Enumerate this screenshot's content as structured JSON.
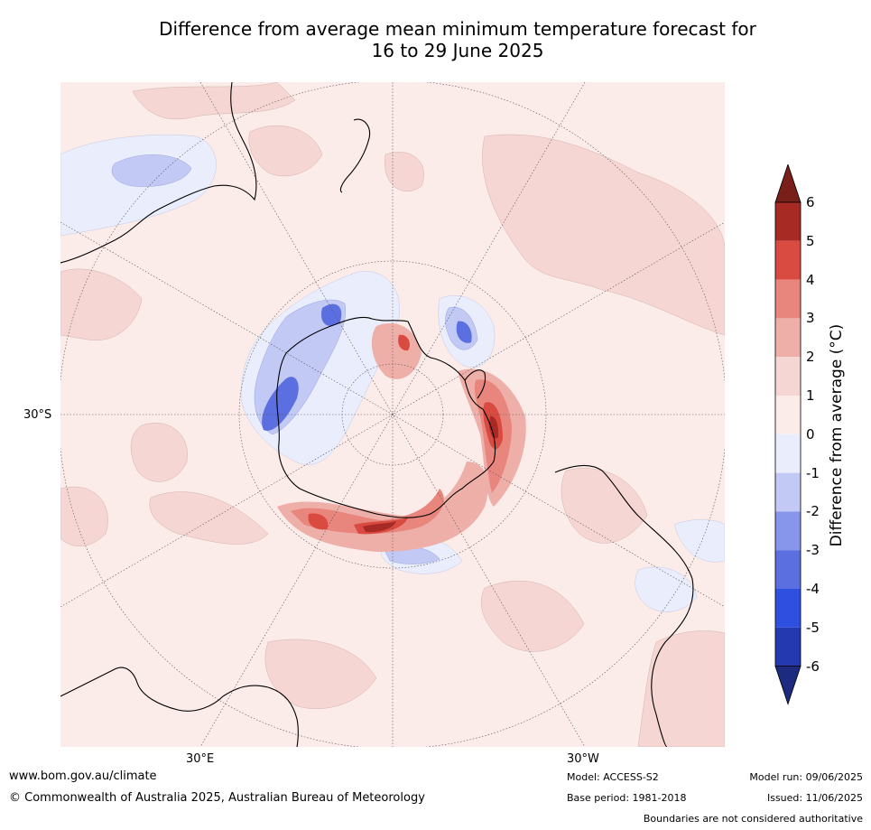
{
  "title_line1": "Difference from average mean minimum temperature forecast for",
  "title_line2": "16 to 29 June 2025",
  "map": {
    "projection": "south-polar-stereographic",
    "lat_label": "30°S",
    "lon_labels": [
      "30°E",
      "30°W"
    ],
    "ocean_fill": "#fbebe9",
    "coastline_color": "#000000"
  },
  "colorbar": {
    "label": "Difference from average (°C)",
    "ticks": [
      "6",
      "5",
      "4",
      "3",
      "2",
      "1",
      "0",
      "-1",
      "-2",
      "-3",
      "-4",
      "-5",
      "-6"
    ],
    "levels": [
      {
        "range": ">6",
        "color": "#7a1e1a"
      },
      {
        "range": "5 to 6",
        "color": "#a82a25"
      },
      {
        "range": "4 to 5",
        "color": "#d94a40"
      },
      {
        "range": "3 to 4",
        "color": "#e8857d"
      },
      {
        "range": "2 to 3",
        "color": "#efafa9"
      },
      {
        "range": "1 to 2",
        "color": "#f6d6d3"
      },
      {
        "range": "0 to 1",
        "color": "#fbebe9"
      },
      {
        "range": "-1 to 0",
        "color": "#eaedfc"
      },
      {
        "range": "-2 to -1",
        "color": "#c2c9f5"
      },
      {
        "range": "-3 to -2",
        "color": "#8795ea"
      },
      {
        "range": "-4 to -3",
        "color": "#5b6fe0"
      },
      {
        "range": "-5 to -4",
        "color": "#2e4fe0"
      },
      {
        "range": "-6 to -5",
        "color": "#2438b0"
      },
      {
        "range": "<-6",
        "color": "#1c2a80"
      }
    ]
  },
  "footer": {
    "website": "www.bom.gov.au/climate",
    "copyright": "© Commonwealth of Australia 2025, Australian Bureau of Meteorology",
    "model": "Model: ACCESS-S2",
    "base_period": "Base period: 1981-2018",
    "model_run": "Model run: 09/06/2025",
    "issued": "Issued: 11/06/2025",
    "disclaimer": "Boundaries are not considered authoritative"
  }
}
